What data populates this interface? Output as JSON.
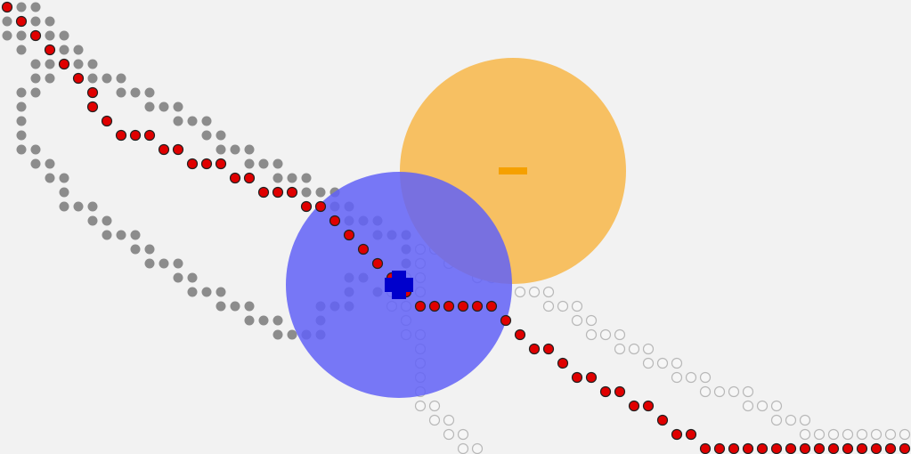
{
  "colors": {
    "background": "#f2f2f2",
    "dot_gray": "#8c8c8c",
    "dot_red": "#e00000",
    "dot_outline": "#b8b8b8",
    "orange_circle": "#f7c062",
    "orange_marker": "#f5a000",
    "blue_circle": "#6161f7",
    "blue_marker": "#0000cc"
  }
}
